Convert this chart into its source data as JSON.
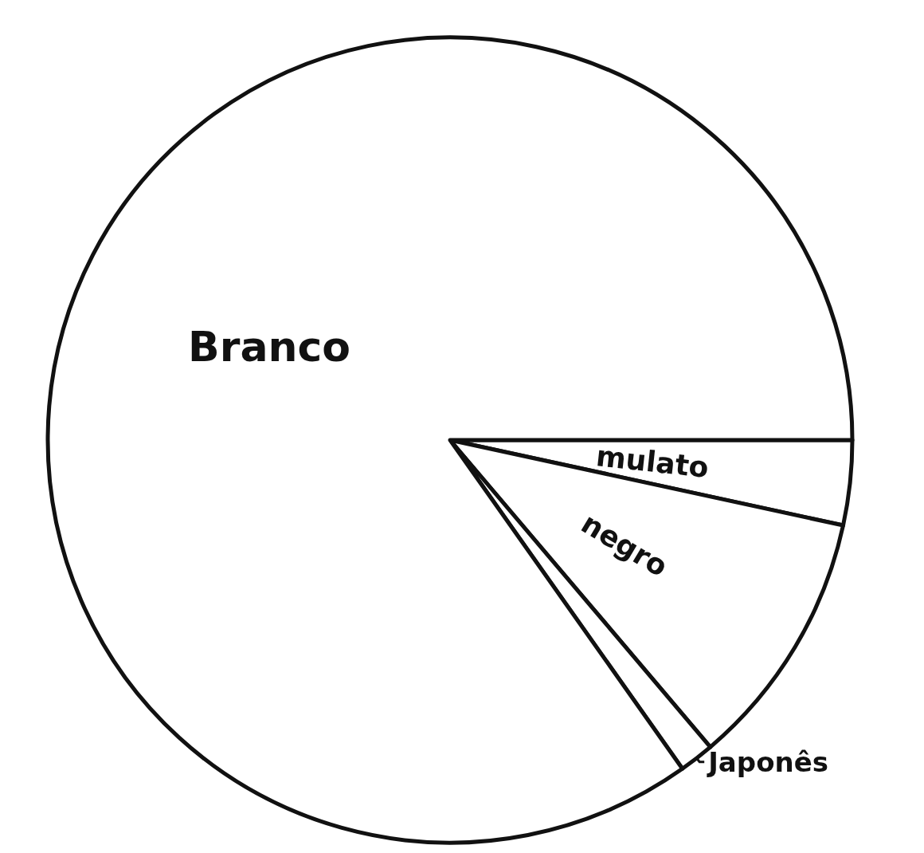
{
  "chart_data": {
    "type": "pie",
    "categories": [
      "mulato",
      "negro",
      "Japonês",
      "Branco"
    ],
    "values": [
      3.4,
      10.4,
      1.4,
      84.8
    ],
    "colors": [
      "#ffffff",
      "#ffffff",
      "#ffffff",
      "#ffffff"
    ]
  }
}
